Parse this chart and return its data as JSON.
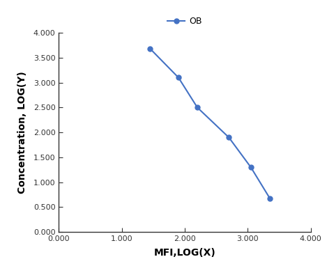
{
  "x": [
    1.45,
    1.9,
    2.2,
    2.7,
    3.05,
    3.35
  ],
  "y": [
    3.68,
    3.1,
    2.5,
    1.9,
    1.3,
    0.68
  ],
  "line_color": "#4472C4",
  "marker": "o",
  "marker_size": 5,
  "legend_label": "OB",
  "xlabel": "MFI,LOG(X)",
  "ylabel": "Concentration, LOG(Y)",
  "xlim": [
    0.0,
    4.0
  ],
  "ylim": [
    0.0,
    4.0
  ],
  "xticks": [
    0.0,
    1.0,
    2.0,
    3.0,
    4.0
  ],
  "yticks": [
    0.0,
    0.5,
    1.0,
    1.5,
    2.0,
    2.5,
    3.0,
    3.5,
    4.0
  ],
  "xlabel_fontsize": 10,
  "ylabel_fontsize": 10,
  "legend_fontsize": 9,
  "tick_fontsize": 8,
  "background_color": "#ffffff",
  "spine_color": "#333333"
}
